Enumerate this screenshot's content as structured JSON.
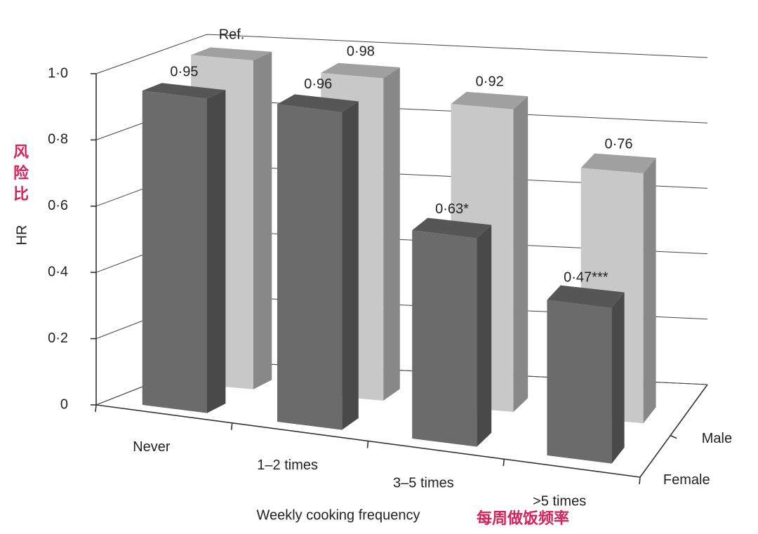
{
  "chart_data": {
    "type": "bar3d",
    "y_label": "HR",
    "y_label_note": "风险比",
    "x_label": "Weekly cooking frequency",
    "x_label_note": "每周做饭频率",
    "categories": [
      "Never",
      "1–2 times",
      "3–5 times",
      ">5 times"
    ],
    "series": [
      {
        "name": "Female",
        "color": "#6b6b6b",
        "values": [
          0.95,
          0.96,
          0.63,
          0.47
        ],
        "value_labels": [
          "0·95",
          "0·96",
          "0·63*",
          "0·47***"
        ]
      },
      {
        "name": "Male",
        "color": "#c8c8c8",
        "values": [
          1,
          0.98,
          0.92,
          0.76
        ],
        "value_labels": [
          "Ref.",
          "0·98",
          "0·92",
          "0·76"
        ]
      }
    ],
    "ylim": [
      0,
      1
    ],
    "yticks": [
      0,
      {
        "value": 0.2,
        "label": "0·2"
      },
      {
        "value": 0.4,
        "label": "0·4"
      },
      {
        "value": 0.6,
        "label": "0·6"
      },
      {
        "value": 0.8,
        "label": "0·8"
      },
      {
        "value": 1,
        "label": "1·0"
      }
    ],
    "grid": true
  }
}
